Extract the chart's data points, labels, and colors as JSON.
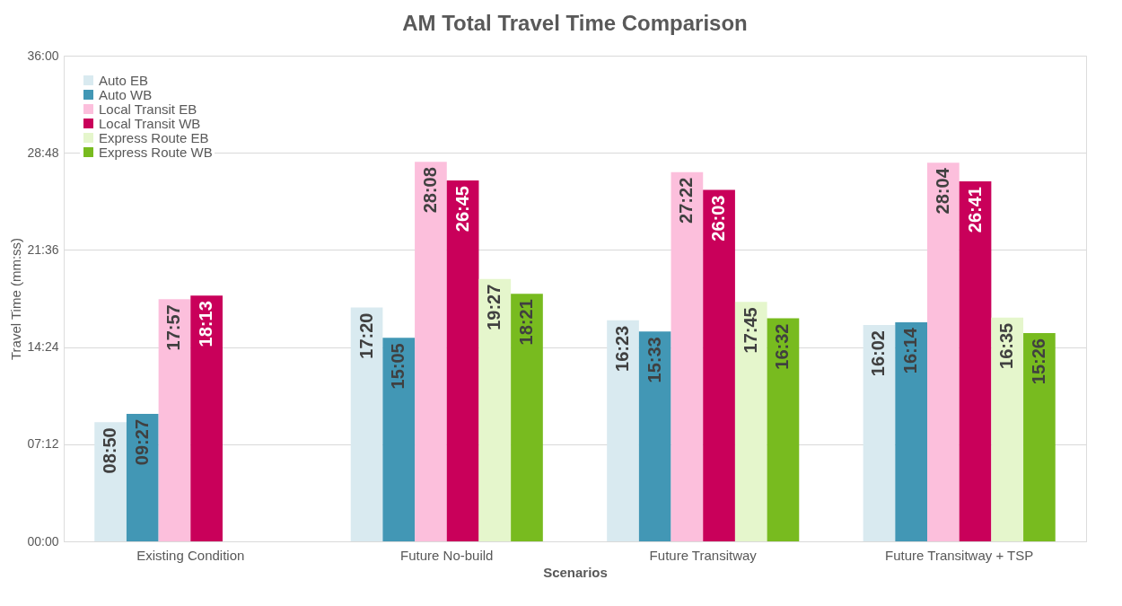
{
  "chart_data": {
    "type": "bar",
    "title": "AM Total Travel Time Comparison",
    "xlabel": "Scenarios",
    "ylabel": "Travel Time (mm:ss)",
    "categories": [
      "Existing Condition",
      "Future No-build",
      "Future Transitway",
      "Future Transitway + TSP"
    ],
    "series": [
      {
        "name": "Auto EB",
        "color": "#d9eaf0",
        "values": [
          530,
          1040,
          983,
          962
        ],
        "value_labels": [
          "08:50",
          "17:20",
          "16:23",
          "16:02"
        ]
      },
      {
        "name": "Auto WB",
        "color": "#4297b5",
        "values": [
          567,
          905,
          933,
          974
        ],
        "value_labels": [
          "09:27",
          "15:05",
          "15:33",
          "16:14"
        ]
      },
      {
        "name": "Local Transit EB",
        "color": "#fcbfdc",
        "values": [
          1077,
          1688,
          1642,
          1684
        ],
        "value_labels": [
          "17:57",
          "28:08",
          "27:22",
          "28:04"
        ]
      },
      {
        "name": "Local Transit WB",
        "color": "#c9005a",
        "values": [
          1093,
          1605,
          1563,
          1601
        ],
        "value_labels": [
          "18:13",
          "26:45",
          "26:03",
          "26:41"
        ]
      },
      {
        "name": "Express Route EB",
        "color": "#e5f6cc",
        "values": [
          null,
          1167,
          1065,
          995
        ],
        "value_labels": [
          null,
          "19:27",
          "17:45",
          "16:35"
        ]
      },
      {
        "name": "Express Route WB",
        "color": "#78bb1f",
        "values": [
          null,
          1101,
          992,
          926
        ],
        "value_labels": [
          null,
          "18:21",
          "16:32",
          "15:26"
        ]
      }
    ],
    "ylim": [
      0,
      2160
    ],
    "yticks": [
      {
        "value": 0,
        "label": "00:00"
      },
      {
        "value": 432,
        "label": "07:12"
      },
      {
        "value": 864,
        "label": "14:24"
      },
      {
        "value": 1296,
        "label": "21:36"
      },
      {
        "value": 1728,
        "label": "28:48"
      },
      {
        "value": 2160,
        "label": "36:00"
      }
    ],
    "grid": "y",
    "legend": "top left"
  }
}
